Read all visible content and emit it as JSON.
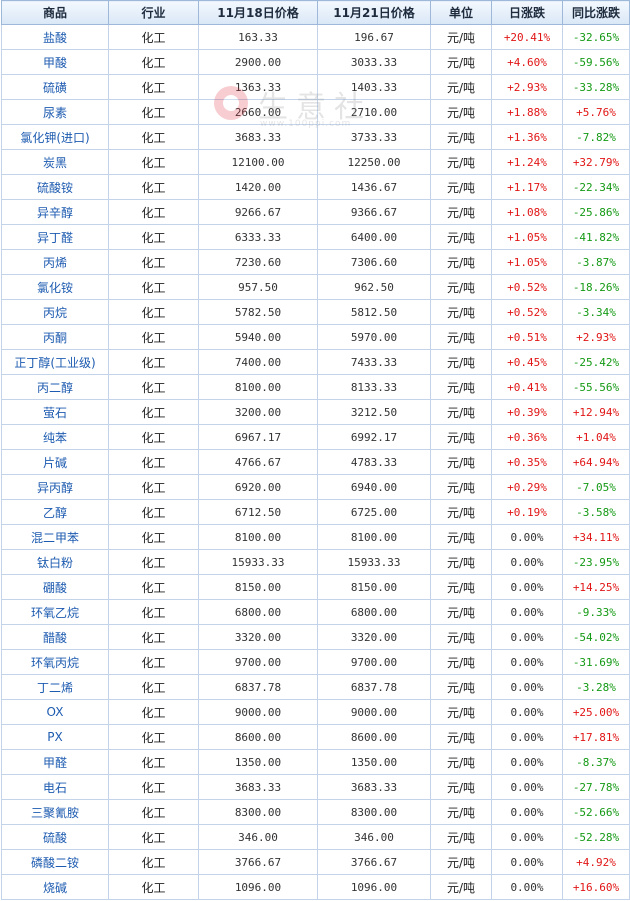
{
  "table": {
    "headers": [
      "商品",
      "行业",
      "11月18日价格",
      "11月21日价格",
      "单位",
      "日涨跌",
      "同比涨跌"
    ],
    "rows": [
      {
        "name": "盐酸",
        "industry": "化工",
        "price1": "163.33",
        "price2": "196.67",
        "unit": "元/吨",
        "daily": "+20.41%",
        "yoy": "-32.65%"
      },
      {
        "name": "甲酸",
        "industry": "化工",
        "price1": "2900.00",
        "price2": "3033.33",
        "unit": "元/吨",
        "daily": "+4.60%",
        "yoy": "-59.56%"
      },
      {
        "name": "硫磺",
        "industry": "化工",
        "price1": "1363.33",
        "price2": "1403.33",
        "unit": "元/吨",
        "daily": "+2.93%",
        "yoy": "-33.28%"
      },
      {
        "name": "尿素",
        "industry": "化工",
        "price1": "2660.00",
        "price2": "2710.00",
        "unit": "元/吨",
        "daily": "+1.88%",
        "yoy": "+5.76%"
      },
      {
        "name": "氯化钾(进口)",
        "industry": "化工",
        "price1": "3683.33",
        "price2": "3733.33",
        "unit": "元/吨",
        "daily": "+1.36%",
        "yoy": "-7.82%"
      },
      {
        "name": "炭黑",
        "industry": "化工",
        "price1": "12100.00",
        "price2": "12250.00",
        "unit": "元/吨",
        "daily": "+1.24%",
        "yoy": "+32.79%"
      },
      {
        "name": "硫酸铵",
        "industry": "化工",
        "price1": "1420.00",
        "price2": "1436.67",
        "unit": "元/吨",
        "daily": "+1.17%",
        "yoy": "-22.34%"
      },
      {
        "name": "异辛醇",
        "industry": "化工",
        "price1": "9266.67",
        "price2": "9366.67",
        "unit": "元/吨",
        "daily": "+1.08%",
        "yoy": "-25.86%"
      },
      {
        "name": "异丁醛",
        "industry": "化工",
        "price1": "6333.33",
        "price2": "6400.00",
        "unit": "元/吨",
        "daily": "+1.05%",
        "yoy": "-41.82%"
      },
      {
        "name": "丙烯",
        "industry": "化工",
        "price1": "7230.60",
        "price2": "7306.60",
        "unit": "元/吨",
        "daily": "+1.05%",
        "yoy": "-3.87%"
      },
      {
        "name": "氯化铵",
        "industry": "化工",
        "price1": "957.50",
        "price2": "962.50",
        "unit": "元/吨",
        "daily": "+0.52%",
        "yoy": "-18.26%"
      },
      {
        "name": "丙烷",
        "industry": "化工",
        "price1": "5782.50",
        "price2": "5812.50",
        "unit": "元/吨",
        "daily": "+0.52%",
        "yoy": "-3.34%"
      },
      {
        "name": "丙酮",
        "industry": "化工",
        "price1": "5940.00",
        "price2": "5970.00",
        "unit": "元/吨",
        "daily": "+0.51%",
        "yoy": "+2.93%"
      },
      {
        "name": "正丁醇(工业级)",
        "industry": "化工",
        "price1": "7400.00",
        "price2": "7433.33",
        "unit": "元/吨",
        "daily": "+0.45%",
        "yoy": "-25.42%"
      },
      {
        "name": "丙二醇",
        "industry": "化工",
        "price1": "8100.00",
        "price2": "8133.33",
        "unit": "元/吨",
        "daily": "+0.41%",
        "yoy": "-55.56%"
      },
      {
        "name": "萤石",
        "industry": "化工",
        "price1": "3200.00",
        "price2": "3212.50",
        "unit": "元/吨",
        "daily": "+0.39%",
        "yoy": "+12.94%"
      },
      {
        "name": "纯苯",
        "industry": "化工",
        "price1": "6967.17",
        "price2": "6992.17",
        "unit": "元/吨",
        "daily": "+0.36%",
        "yoy": "+1.04%"
      },
      {
        "name": "片碱",
        "industry": "化工",
        "price1": "4766.67",
        "price2": "4783.33",
        "unit": "元/吨",
        "daily": "+0.35%",
        "yoy": "+64.94%"
      },
      {
        "name": "异丙醇",
        "industry": "化工",
        "price1": "6920.00",
        "price2": "6940.00",
        "unit": "元/吨",
        "daily": "+0.29%",
        "yoy": "-7.05%"
      },
      {
        "name": "乙醇",
        "industry": "化工",
        "price1": "6712.50",
        "price2": "6725.00",
        "unit": "元/吨",
        "daily": "+0.19%",
        "yoy": "-3.58%"
      },
      {
        "name": "混二甲苯",
        "industry": "化工",
        "price1": "8100.00",
        "price2": "8100.00",
        "unit": "元/吨",
        "daily": "0.00%",
        "yoy": "+34.11%"
      },
      {
        "name": "钛白粉",
        "industry": "化工",
        "price1": "15933.33",
        "price2": "15933.33",
        "unit": "元/吨",
        "daily": "0.00%",
        "yoy": "-23.95%"
      },
      {
        "name": "硼酸",
        "industry": "化工",
        "price1": "8150.00",
        "price2": "8150.00",
        "unit": "元/吨",
        "daily": "0.00%",
        "yoy": "+14.25%"
      },
      {
        "name": "环氧乙烷",
        "industry": "化工",
        "price1": "6800.00",
        "price2": "6800.00",
        "unit": "元/吨",
        "daily": "0.00%",
        "yoy": "-9.33%"
      },
      {
        "name": "醋酸",
        "industry": "化工",
        "price1": "3320.00",
        "price2": "3320.00",
        "unit": "元/吨",
        "daily": "0.00%",
        "yoy": "-54.02%"
      },
      {
        "name": "环氧丙烷",
        "industry": "化工",
        "price1": "9700.00",
        "price2": "9700.00",
        "unit": "元/吨",
        "daily": "0.00%",
        "yoy": "-31.69%"
      },
      {
        "name": "丁二烯",
        "industry": "化工",
        "price1": "6837.78",
        "price2": "6837.78",
        "unit": "元/吨",
        "daily": "0.00%",
        "yoy": "-3.28%"
      },
      {
        "name": "OX",
        "industry": "化工",
        "price1": "9000.00",
        "price2": "9000.00",
        "unit": "元/吨",
        "daily": "0.00%",
        "yoy": "+25.00%"
      },
      {
        "name": "PX",
        "industry": "化工",
        "price1": "8600.00",
        "price2": "8600.00",
        "unit": "元/吨",
        "daily": "0.00%",
        "yoy": "+17.81%"
      },
      {
        "name": "甲醛",
        "industry": "化工",
        "price1": "1350.00",
        "price2": "1350.00",
        "unit": "元/吨",
        "daily": "0.00%",
        "yoy": "-8.37%"
      },
      {
        "name": "电石",
        "industry": "化工",
        "price1": "3683.33",
        "price2": "3683.33",
        "unit": "元/吨",
        "daily": "0.00%",
        "yoy": "-27.78%"
      },
      {
        "name": "三聚氰胺",
        "industry": "化工",
        "price1": "8300.00",
        "price2": "8300.00",
        "unit": "元/吨",
        "daily": "0.00%",
        "yoy": "-52.66%"
      },
      {
        "name": "硫酸",
        "industry": "化工",
        "price1": "346.00",
        "price2": "346.00",
        "unit": "元/吨",
        "daily": "0.00%",
        "yoy": "-52.28%"
      },
      {
        "name": "磷酸二铵",
        "industry": "化工",
        "price1": "3766.67",
        "price2": "3766.67",
        "unit": "元/吨",
        "daily": "0.00%",
        "yoy": "+4.92%"
      },
      {
        "name": "烧碱",
        "industry": "化工",
        "price1": "1096.00",
        "price2": "1096.00",
        "unit": "元/吨",
        "daily": "0.00%",
        "yoy": "+16.60%"
      }
    ]
  },
  "watermark": {
    "text": "生意社",
    "sub": "www.100ppi.com"
  },
  "colors": {
    "rise": "#e11515",
    "fall": "#149a14",
    "name_link": "#1d5bb0",
    "header_bg": "#d9e7f6",
    "border": "#c3d4ea"
  }
}
